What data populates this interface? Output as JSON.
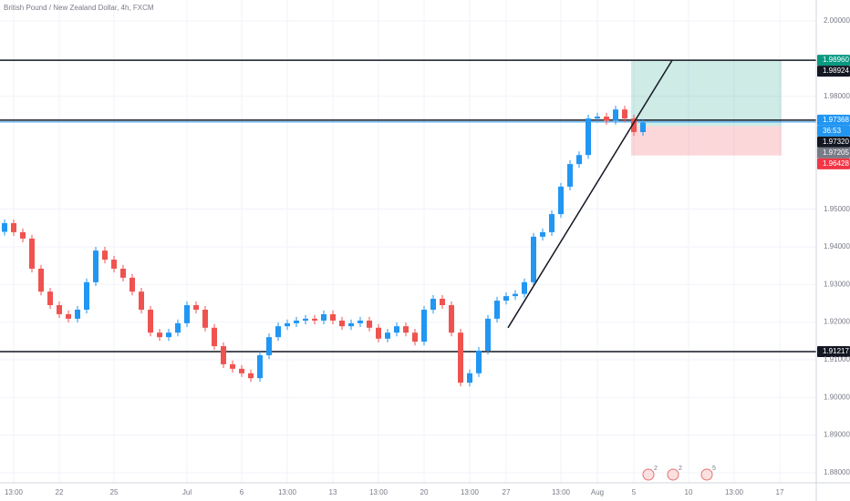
{
  "chart_data": {
    "type": "candlestick",
    "title": "British Pound / New Zealand Dollar, 4h, FXCM",
    "categories": [
      null,
      "13:00",
      null,
      null,
      null,
      null,
      "22",
      null,
      null,
      null,
      null,
      null,
      "25",
      null,
      null,
      null,
      null,
      null,
      null,
      null,
      "Jul",
      null,
      null,
      null,
      null,
      null,
      "6",
      null,
      null,
      null,
      null,
      "13:00",
      null,
      null,
      null,
      null,
      "13",
      null,
      null,
      null,
      null,
      "13:00",
      null,
      null,
      null,
      null,
      "20",
      null,
      null,
      null,
      null,
      "13:00",
      null,
      null,
      null,
      "27",
      null,
      null,
      null,
      null,
      null,
      "13:00",
      null,
      null,
      null,
      "Aug",
      null,
      null,
      null,
      "5",
      null,
      null,
      null,
      null,
      null,
      "10",
      null,
      null,
      null,
      null,
      "13:00",
      null,
      null,
      null,
      null,
      "17",
      null,
      null
    ],
    "open": [
      1.944,
      1.9463,
      1.9439,
      1.9422,
      1.9342,
      1.9281,
      1.9245,
      1.9221,
      1.9209,
      1.9233,
      1.9306,
      1.939,
      1.9366,
      1.9342,
      1.9318,
      1.9281,
      1.9233,
      1.9172,
      1.916,
      1.9172,
      1.9197,
      1.9245,
      1.9233,
      1.9185,
      1.9136,
      1.9088,
      1.9076,
      1.9064,
      1.9051,
      1.9112,
      1.916,
      1.9189,
      1.9197,
      1.9204,
      1.9209,
      1.9204,
      1.9221,
      1.9204,
      1.9189,
      1.9197,
      1.9204,
      1.9185,
      1.9156,
      1.9172,
      1.9189,
      1.9172,
      1.9148,
      1.9233,
      1.9262,
      1.9245,
      1.9172,
      1.9039,
      1.9064,
      1.9124,
      1.9209,
      1.9257,
      1.9269,
      1.9275,
      1.9306,
      1.9427,
      1.9439,
      1.9487,
      1.956,
      1.962,
      1.9644,
      1.9741,
      1.9746,
      1.9735,
      1.9765,
      1.9741,
      1.9705,
      null,
      null,
      null,
      null,
      null,
      null,
      null,
      null,
      null,
      null,
      null,
      null,
      null,
      null,
      null,
      null,
      null
    ],
    "high": [
      1.9473,
      1.9473,
      1.9449,
      1.9432,
      1.9352,
      1.9291,
      1.9255,
      1.9231,
      1.9243,
      1.9316,
      1.94,
      1.94,
      1.9376,
      1.9352,
      1.9328,
      1.9291,
      1.9243,
      1.9182,
      1.9182,
      1.9207,
      1.9255,
      1.9255,
      1.9243,
      1.9195,
      1.9146,
      1.9098,
      1.9086,
      1.9074,
      1.9122,
      1.917,
      1.9199,
      1.9207,
      1.9214,
      1.9219,
      1.9219,
      1.9231,
      1.9231,
      1.9214,
      1.9207,
      1.9214,
      1.9214,
      1.9195,
      1.9182,
      1.9199,
      1.9199,
      1.9182,
      1.9243,
      1.9272,
      1.9272,
      1.9255,
      1.9182,
      1.9074,
      1.9134,
      1.9219,
      1.9267,
      1.9279,
      1.9285,
      1.9316,
      1.9437,
      1.9449,
      1.9497,
      1.957,
      1.963,
      1.9654,
      1.9751,
      1.9756,
      1.9756,
      1.9775,
      1.9775,
      1.9751,
      1.974,
      null,
      null,
      null,
      null,
      null,
      null,
      null,
      null,
      null,
      null,
      null,
      null,
      null,
      null,
      null,
      null,
      null
    ],
    "low": [
      1.943,
      1.9429,
      1.9412,
      1.9332,
      1.9271,
      1.9235,
      1.9211,
      1.9199,
      1.9199,
      1.9223,
      1.9296,
      1.9356,
      1.9332,
      1.9308,
      1.9271,
      1.9223,
      1.9162,
      1.915,
      1.915,
      1.9162,
      1.9187,
      1.9223,
      1.9175,
      1.9126,
      1.9078,
      1.9066,
      1.9054,
      1.9041,
      1.9041,
      1.9102,
      1.915,
      1.9179,
      1.9187,
      1.9194,
      1.9194,
      1.9194,
      1.9194,
      1.9179,
      1.9179,
      1.9187,
      1.9175,
      1.9146,
      1.9146,
      1.9162,
      1.9162,
      1.9138,
      1.9138,
      1.9223,
      1.9235,
      1.9162,
      1.9029,
      1.9029,
      1.9054,
      1.9114,
      1.9199,
      1.9247,
      1.9259,
      1.9265,
      1.9296,
      1.9417,
      1.9429,
      1.9477,
      1.955,
      1.961,
      1.9634,
      1.9731,
      1.9725,
      1.9725,
      1.9731,
      1.9695,
      1.9695,
      null,
      null,
      null,
      null,
      null,
      null,
      null,
      null,
      null,
      null,
      null,
      null,
      null,
      null,
      null,
      null,
      null
    ],
    "close": [
      1.9463,
      1.9439,
      1.9422,
      1.9342,
      1.9281,
      1.9245,
      1.9221,
      1.9209,
      1.9233,
      1.9306,
      1.939,
      1.9366,
      1.9342,
      1.9318,
      1.9281,
      1.9233,
      1.9172,
      1.916,
      1.9172,
      1.9197,
      1.9245,
      1.9233,
      1.9185,
      1.9136,
      1.9088,
      1.9076,
      1.9064,
      1.9051,
      1.9112,
      1.916,
      1.9189,
      1.9197,
      1.9204,
      1.9209,
      1.9204,
      1.9221,
      1.9204,
      1.9189,
      1.9197,
      1.9204,
      1.9185,
      1.9156,
      1.9172,
      1.9189,
      1.9172,
      1.9148,
      1.9233,
      1.9262,
      1.9245,
      1.9172,
      1.9039,
      1.9064,
      1.9124,
      1.9209,
      1.9257,
      1.9269,
      1.9275,
      1.9306,
      1.9427,
      1.9439,
      1.9487,
      1.956,
      1.962,
      1.9644,
      1.9741,
      1.9746,
      1.9735,
      1.9765,
      1.9741,
      1.9705,
      1.973,
      null,
      null,
      null,
      null,
      null,
      null,
      null,
      null,
      null,
      null,
      null,
      null,
      null,
      null,
      null,
      null,
      null
    ],
    "up_color": "#2196f3",
    "down_color": "#ef5350",
    "ylim": [
      1.8773,
      2.0056
    ],
    "yticks": [
      {
        "value": 2.0,
        "label": "2.00000"
      },
      {
        "value": 1.98,
        "label": "1.98000"
      },
      {
        "value": 1.95,
        "label": "1.95000"
      },
      {
        "value": 1.94,
        "label": "1.94000"
      },
      {
        "value": 1.93,
        "label": "1.93000"
      },
      {
        "value": 1.92,
        "label": "1.92000"
      },
      {
        "value": 1.91,
        "label": "1.91000"
      },
      {
        "value": 1.9,
        "label": "1.90000"
      },
      {
        "value": 1.89,
        "label": "1.89000"
      },
      {
        "value": 1.88,
        "label": "1.88000"
      }
    ],
    "grid": true,
    "levels": [
      1.9896,
      1.97368,
      1.91217
    ],
    "trendline": [
      1.9185,
      1.9896
    ],
    "price_tags": [
      {
        "value": 1.9896,
        "label": "1.98960",
        "color": "#089981"
      },
      {
        "value": 1.98924,
        "label": "1.98924",
        "color": "#131722"
      },
      {
        "value": 1.97368,
        "label": "1.97368",
        "color": "#2196f3"
      },
      {
        "label": "36:53",
        "color": "#2196f3"
      },
      {
        "value": 1.9732,
        "label": "1.97320",
        "color": "#131722"
      },
      {
        "value": 1.97205,
        "label": "1.97205",
        "color": "#787b86"
      },
      {
        "value": 1.96428,
        "label": "1.96428",
        "color": "#f23645"
      },
      {
        "value": 1.91217,
        "label": "1.91217",
        "color": "#131722"
      }
    ],
    "events": [
      "2",
      "2",
      "5"
    ]
  }
}
